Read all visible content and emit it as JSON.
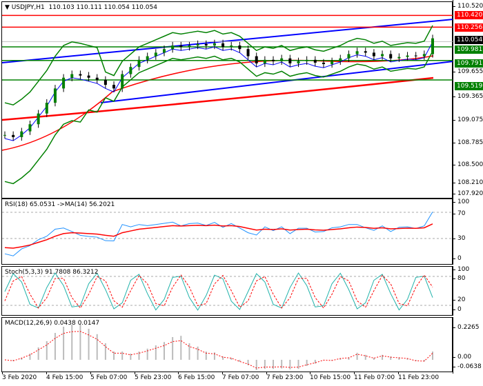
{
  "header": {
    "symbol": "USDJPY,H1",
    "ohlc": "110.103 110.111 110.054 110.054"
  },
  "price_axis": [
    "110.520",
    "109.655",
    "109.365",
    "109.075",
    "108.785",
    "108.500",
    "108.210",
    "107.920"
  ],
  "price_labels": [
    {
      "value": "110.420",
      "color": "#ff0000"
    },
    {
      "value": "110.256",
      "color": "#ff0000"
    },
    {
      "value": "110.054",
      "color": "#000000"
    },
    {
      "value": "109.981",
      "color": "#008000"
    },
    {
      "value": "109.791",
      "color": "#008000"
    },
    {
      "value": "109.519",
      "color": "#008000"
    }
  ],
  "levels": {
    "red": [
      110.42,
      110.256
    ],
    "green": [
      109.981,
      109.791,
      109.519
    ]
  },
  "closes": [
    108.75,
    108.72,
    108.8,
    108.9,
    109.05,
    109.2,
    109.4,
    109.55,
    109.6,
    109.58,
    109.55,
    109.52,
    109.45,
    109.4,
    109.6,
    109.7,
    109.8,
    109.85,
    109.9,
    109.95,
    110.0,
    109.98,
    110.0,
    110.02,
    110.0,
    110.03,
    109.98,
    110.0,
    109.95,
    109.85,
    109.75,
    109.8,
    109.78,
    109.82,
    109.75,
    109.78,
    109.8,
    109.76,
    109.74,
    109.78,
    109.82,
    109.88,
    109.92,
    109.9,
    109.85,
    109.88,
    109.82,
    109.84,
    109.86,
    109.85,
    109.88,
    110.1
  ],
  "rsi": {
    "title": "RSI(18) 65.0531  ->MA(14) 56.2021",
    "axis": [
      "100",
      "70",
      "30",
      "0"
    ]
  },
  "stoch": {
    "title": "Stoch(5,3,3) 91.7808 86.3212",
    "axis": [
      "100",
      "80",
      "20",
      "0"
    ]
  },
  "macd": {
    "title": "MACD(12,26,9) 0.0438 0.0147",
    "axis": [
      "0.2265",
      "0.00",
      "-0.0638"
    ]
  },
  "time_axis": [
    "3 Feb 2020",
    "4 Feb 15:00",
    "5 Feb 07:00",
    "5 Feb 23:00",
    "6 Feb 15:00",
    "7 Feb 07:00",
    "7 Feb 23:00",
    "10 Feb 15:00",
    "11 Feb 07:00",
    "11 Feb 23:00"
  ]
}
